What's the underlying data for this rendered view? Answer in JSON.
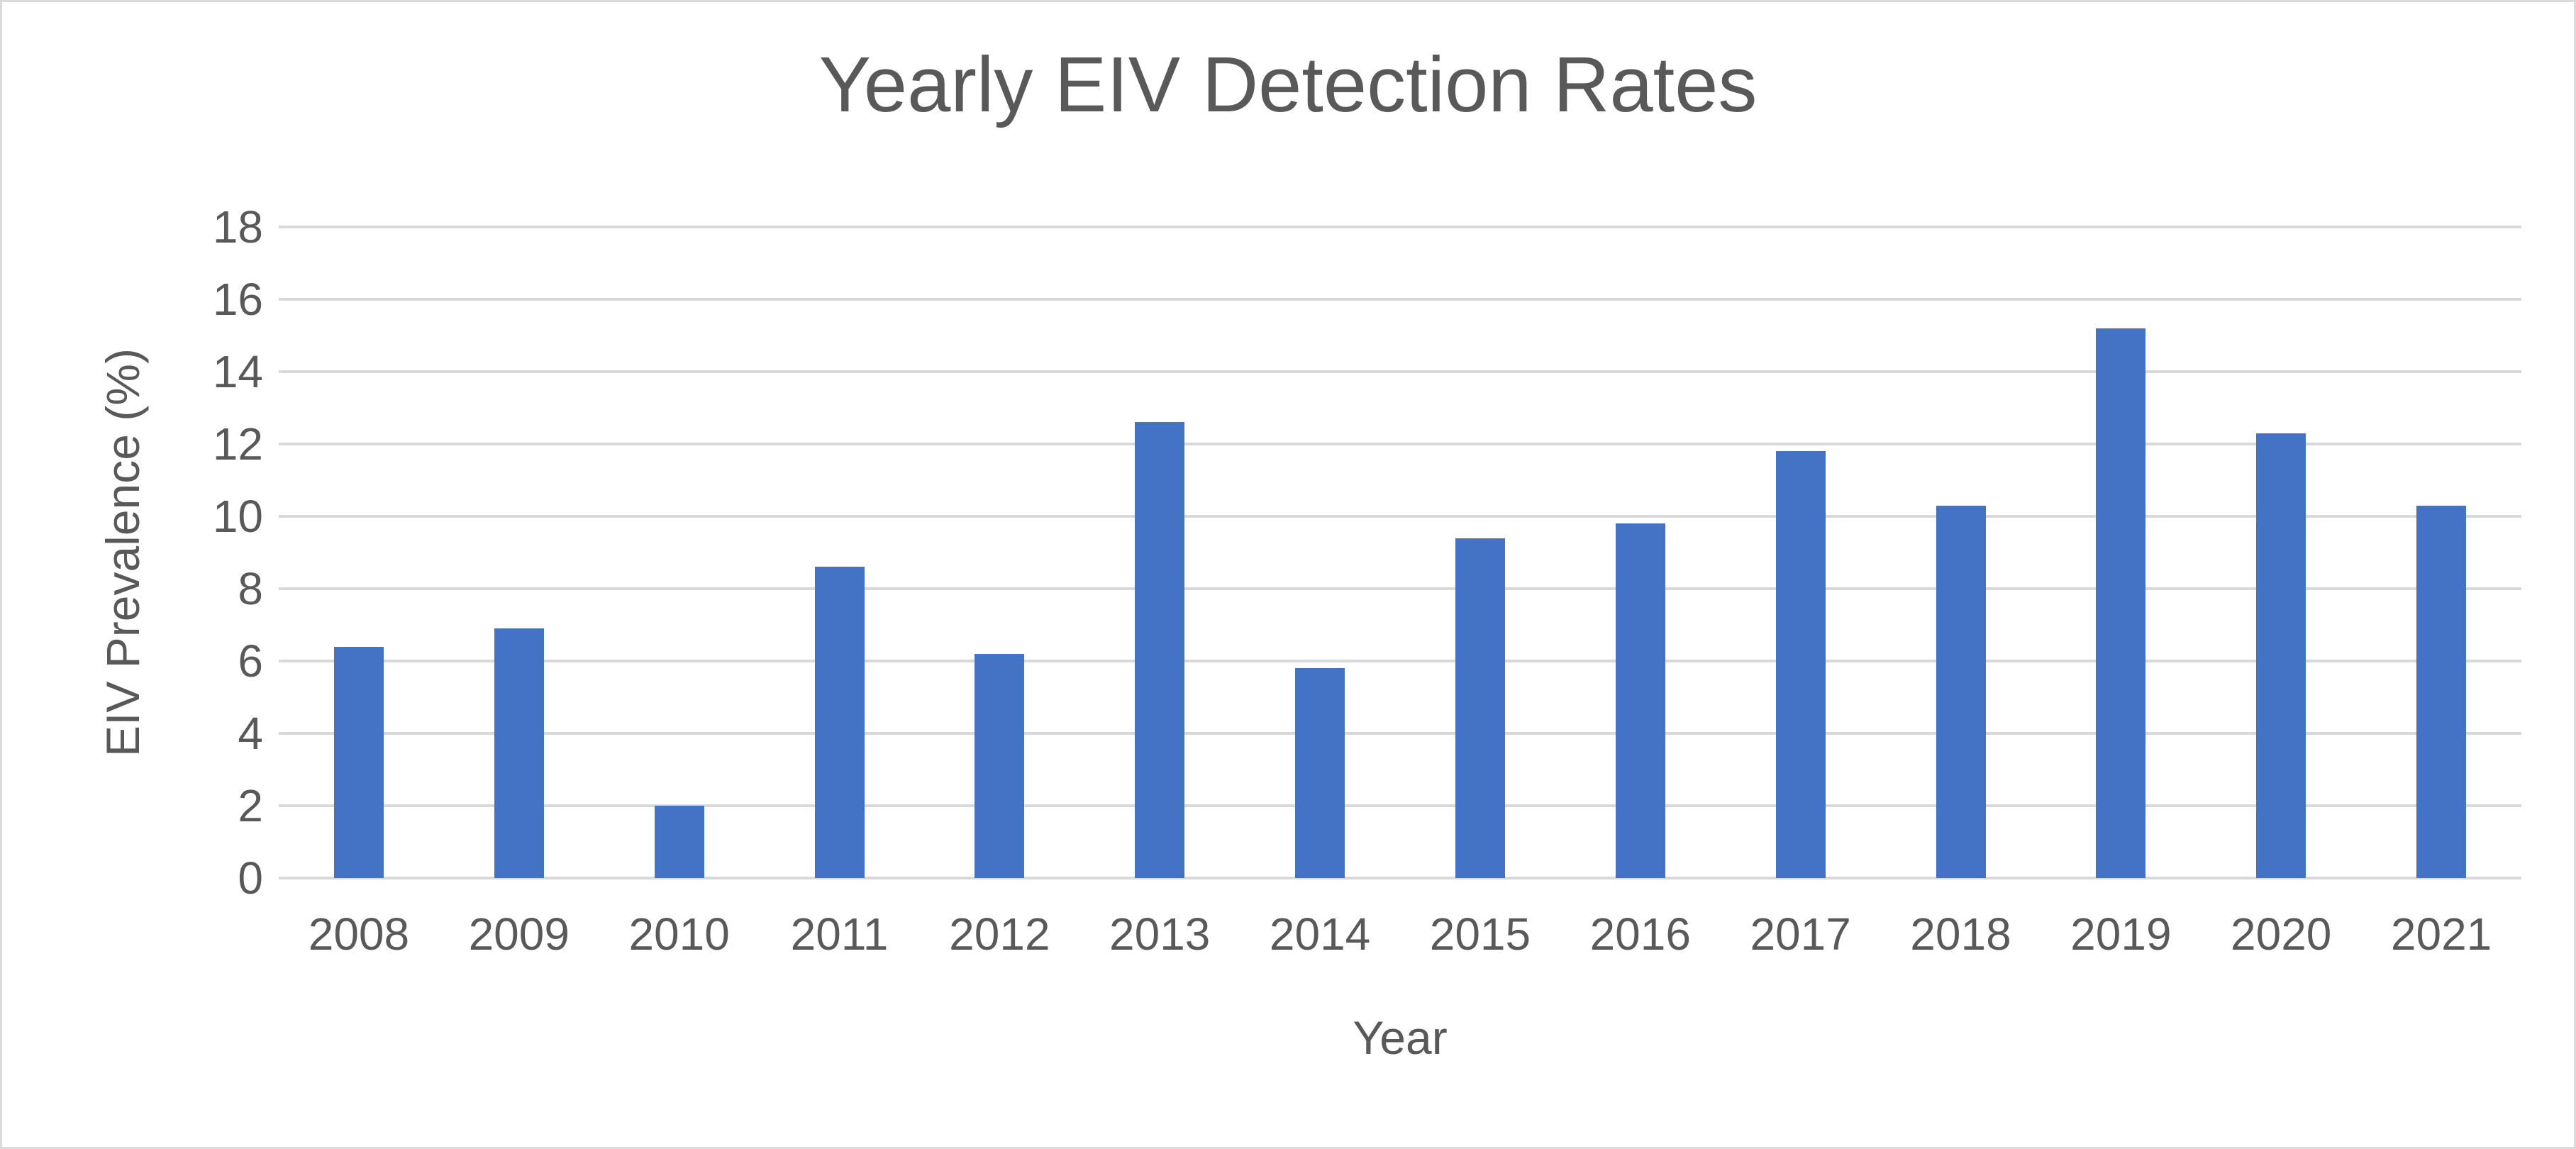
{
  "chart_data": {
    "type": "bar",
    "title": "Yearly EIV Detection Rates",
    "xlabel": "Year",
    "ylabel": "EIV Prevalence (%)",
    "categories": [
      "2008",
      "2009",
      "2010",
      "2011",
      "2012",
      "2013",
      "2014",
      "2015",
      "2016",
      "2017",
      "2018",
      "2019",
      "2020",
      "2021"
    ],
    "values": [
      6.4,
      6.9,
      2.0,
      8.6,
      6.2,
      12.6,
      5.8,
      9.4,
      9.8,
      11.8,
      10.3,
      15.2,
      12.3,
      10.3
    ],
    "ylim": [
      0,
      18
    ],
    "yticks": [
      0,
      2,
      4,
      6,
      8,
      10,
      12,
      14,
      16,
      18
    ],
    "grid": true,
    "legend": false,
    "colors": {
      "bar": "#4472C4",
      "text": "#595959",
      "gridline": "#D9D9D9",
      "frame_border": "#D9D9D9",
      "background": "#FFFFFF"
    }
  }
}
